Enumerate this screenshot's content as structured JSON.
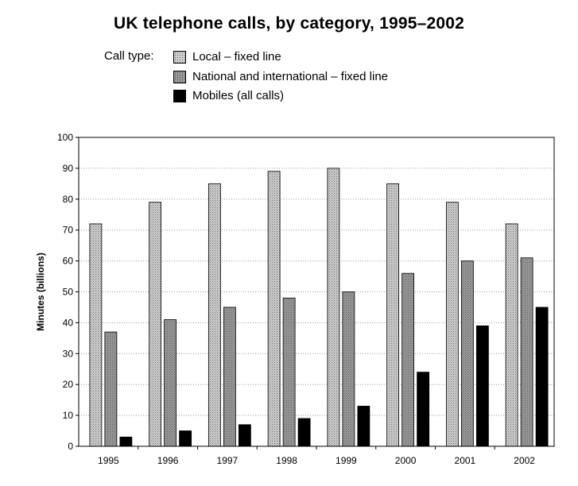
{
  "chart_data": {
    "type": "bar",
    "title": "UK telephone calls, by category, 1995–2002",
    "legend_heading": "Call type:",
    "legend_position": "top-left, above plot",
    "xlabel": "",
    "ylabel": "Minutes (billions)",
    "ylim": [
      0,
      100
    ],
    "yticks": [
      0,
      10,
      20,
      30,
      40,
      50,
      60,
      70,
      80,
      90,
      100
    ],
    "grid": "horizontal dotted",
    "categories": [
      "1995",
      "1996",
      "1997",
      "1998",
      "1999",
      "2000",
      "2001",
      "2002"
    ],
    "series": [
      {
        "name": "Local – fixed line",
        "color": "#b5b5b5",
        "pattern": "dotted-light",
        "values": [
          72,
          79,
          85,
          89,
          90,
          85,
          79,
          72
        ]
      },
      {
        "name": "National and international – fixed line",
        "color": "#8a8a8a",
        "pattern": "dotted-dark",
        "values": [
          37,
          41,
          45,
          48,
          50,
          56,
          60,
          61
        ]
      },
      {
        "name": "Mobiles (all calls)",
        "color": "#000000",
        "pattern": "solid",
        "values": [
          3,
          5,
          7,
          9,
          13,
          24,
          39,
          45
        ]
      }
    ]
  }
}
